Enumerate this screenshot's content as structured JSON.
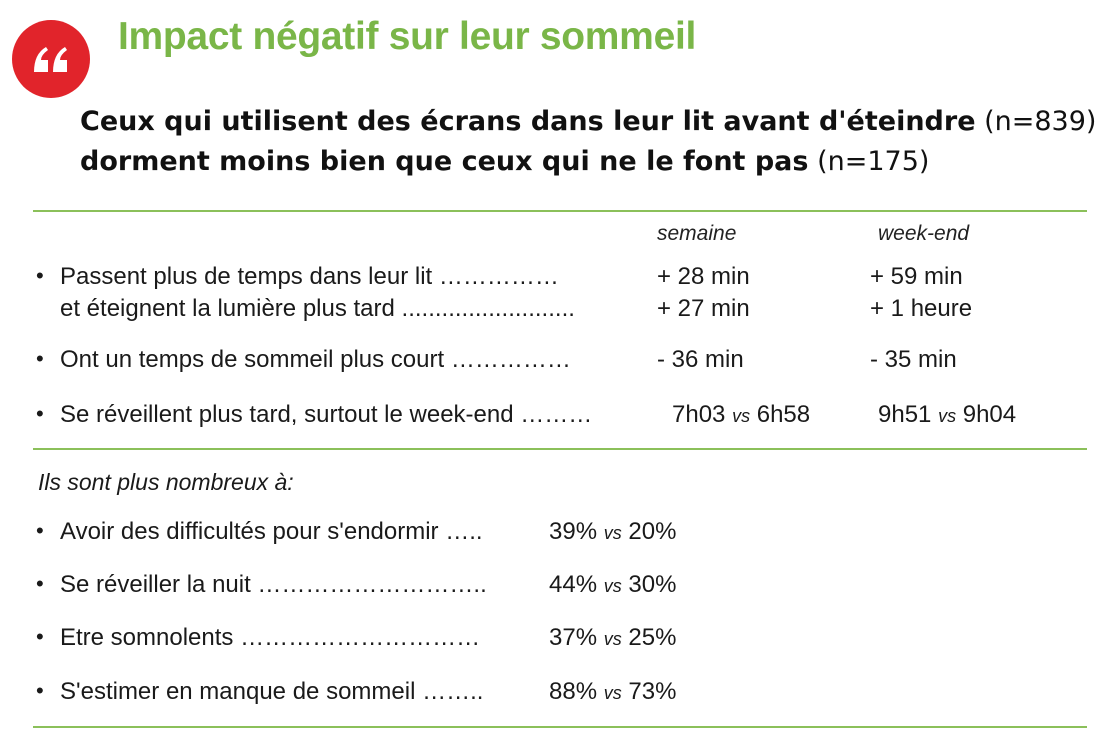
{
  "header": {
    "title": "Impact négatif sur leur sommeil",
    "quote_glyph": "“",
    "subtitle": {
      "line1_bold": "Ceux qui utilisent des écrans dans leur lit avant d'éteindre",
      "line1_normal": " (n=839)",
      "line2_bold": "dorment moins bien que ceux qui ne le font pas",
      "line2_normal": " (n=175)"
    }
  },
  "table": {
    "columns": {
      "week": "semaine",
      "weekend": "week-end"
    },
    "rows": [
      {
        "label": "Passent plus de temps dans leur lit ……………",
        "week": "+ 28 min",
        "weekend": "+ 59 min",
        "bullet": true
      },
      {
        "label": "et éteignent la lumière plus tard ..........................",
        "week": "+ 27 min",
        "weekend": "+ 1 heure",
        "bullet": false
      },
      {
        "label": "Ont un temps de sommeil plus court ……………",
        "week": "- 36 min",
        "weekend": "- 35 min",
        "bullet": true
      },
      {
        "label": "Se réveillent plus tard, surtout le week-end ………",
        "week_a": "7h03",
        "week_b": "6h58",
        "weekend_a": "9h51",
        "weekend_b": "9h04",
        "bullet": true
      }
    ],
    "vs": "vs"
  },
  "more": {
    "heading": "Ils sont plus nombreux à:",
    "items": [
      {
        "label": "Avoir des difficultés pour s'endormir …..",
        "a": "39%",
        "b": "20%"
      },
      {
        "label": "Se réveiller la nuit ………………………..",
        "a": "44%",
        "b": "30%"
      },
      {
        "label": "Etre somnolents  …………………………",
        "a": "37%",
        "b": "25%"
      },
      {
        "label": "S'estimer en manque de sommeil  ……..",
        "a": "88%",
        "b": "73%"
      }
    ],
    "bullet": "•"
  },
  "colors": {
    "accent_green": "#7ab648",
    "rule_green": "#8bc05a",
    "badge_red": "#e1242b"
  }
}
